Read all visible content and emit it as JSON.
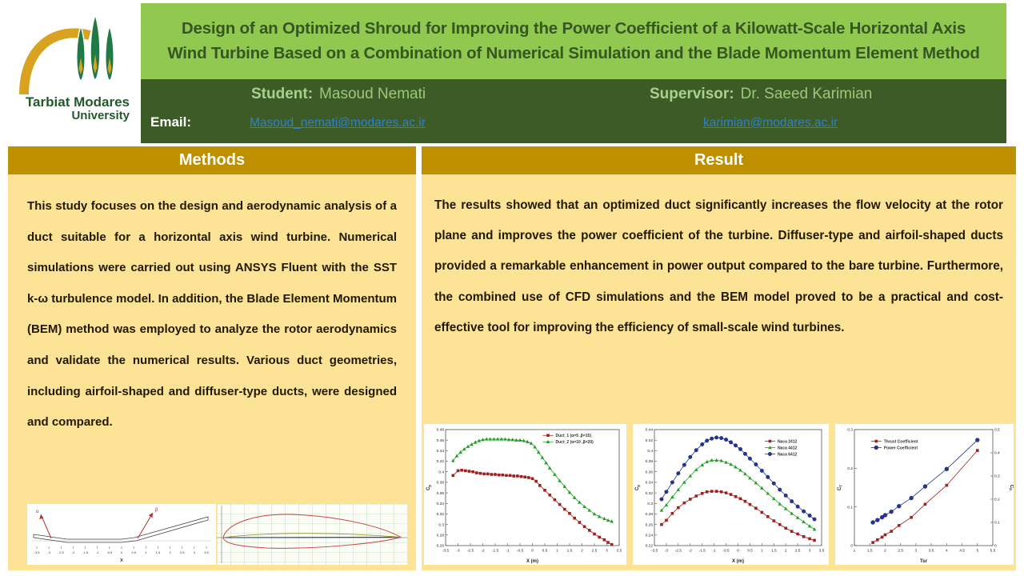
{
  "logo": {
    "name_line1": "Tarbiat Modares",
    "name_line2": "University"
  },
  "title": "Design of an Optimized Shroud for Improving the Power Coefficient of a Kilowatt-Scale Horizontal Axis Wind Turbine Based on a Combination of Numerical Simulation and the Blade Momentum Element Method",
  "people": {
    "student_label": "Student:",
    "student_name": "Masoud Nemati",
    "supervisor_label": "Supervisor:",
    "supervisor_name": "Dr. Saeed Karimian",
    "email_label": "Email:",
    "student_email": "Masoud_nemati@modares.ac.ir",
    "supervisor_email": "karimian@modares.ac.ir"
  },
  "sections": {
    "methods": {
      "title": "Methods",
      "body": "This study focuses on the design and aerodynamic analysis of a duct suitable for a horizontal axis wind turbine. Numerical simulations were carried out using ANSYS Fluent with the SST k-ω turbulence model. In addition, the Blade Element Momentum (BEM) method was employed to analyze the rotor aerodynamics and validate the numerical results. Various duct geometries, including airfoil-shaped and diffuser-type ducts, were designed and compared."
    },
    "result": {
      "title": "Result",
      "body": "The results showed that an optimized duct significantly increases the flow velocity at the rotor plane and improves the power coefficient of the turbine. Diffuser-type and airfoil-shaped ducts provided a remarkable enhancement in power output compared to the bare turbine. Furthermore, the combined use of CFD simulations and the BEM model proved to be a practical and cost-effective tool for improving the efficiency of small-scale wind turbines."
    }
  },
  "colors": {
    "title_band": "#90C850",
    "title_text": "#375623",
    "people_band": "#3D5B26",
    "section_header": "#BE9000",
    "panel_bg": "#FCE395",
    "link": "#2E80C8",
    "name_text": "#9CC87B",
    "series_red": "#A02020",
    "series_green": "#22A022",
    "series_blue": "#2233A0"
  },
  "chart_data": [
    {
      "type": "diagram",
      "id": "duct-profile",
      "description": "2D cross-section of the duct wall with inlet angle α and outlet angle β arrows",
      "xlabel": "X",
      "xticks": [
        -3.5,
        -3,
        -2.5,
        -2,
        -1.5,
        -1,
        -0.5,
        0,
        0.5,
        1,
        1.5,
        2,
        2.5,
        3,
        3.5
      ],
      "alpha_label": "α",
      "beta_label": "β"
    },
    {
      "type": "diagram",
      "id": "airfoil-profile",
      "description": "Cambered airfoil cross-section (red outline) with chord line (blue) and camber line (olive) on green grid"
    },
    {
      "type": "line",
      "id": "duct-cp-chart",
      "xlabel": "X (m)",
      "ylabel": {
        "main": "C",
        "sub": "p"
      },
      "xlim": [
        -3.5,
        3.5
      ],
      "ylim": [
        0.26,
        0.48
      ],
      "xticks": [
        -3.5,
        -3,
        -2.5,
        -2,
        -1.5,
        -1,
        -0.5,
        0,
        0.5,
        1,
        1.5,
        2,
        2.5,
        3,
        3.5
      ],
      "yticks": [
        0.26,
        0.28,
        0.3,
        0.32,
        0.34,
        0.36,
        0.38,
        0.4,
        0.42,
        0.44,
        0.46,
        0.48
      ],
      "legend_pos": [
        0.56,
        0.05
      ],
      "series": [
        {
          "name": "Duct_1 (α=5 ,β=15)",
          "color": "#A02020",
          "marker": "square",
          "points": [
            [
              -3.2,
              0.393
            ],
            [
              -3.0,
              0.402
            ],
            [
              -2.85,
              0.403
            ],
            [
              -2.7,
              0.402
            ],
            [
              -2.55,
              0.401
            ],
            [
              -2.4,
              0.4
            ],
            [
              -2.25,
              0.398
            ],
            [
              -2.1,
              0.397
            ],
            [
              -1.95,
              0.396
            ],
            [
              -1.8,
              0.396
            ],
            [
              -1.65,
              0.395
            ],
            [
              -1.5,
              0.395
            ],
            [
              -1.35,
              0.394
            ],
            [
              -1.2,
              0.394
            ],
            [
              -1.05,
              0.393
            ],
            [
              -0.9,
              0.393
            ],
            [
              -0.75,
              0.392
            ],
            [
              -0.6,
              0.392
            ],
            [
              -0.45,
              0.391
            ],
            [
              -0.3,
              0.39
            ],
            [
              -0.15,
              0.389
            ],
            [
              0.0,
              0.387
            ],
            [
              0.15,
              0.382
            ],
            [
              0.3,
              0.374
            ],
            [
              0.5,
              0.365
            ],
            [
              0.7,
              0.356
            ],
            [
              0.9,
              0.347
            ],
            [
              1.1,
              0.338
            ],
            [
              1.3,
              0.329
            ],
            [
              1.5,
              0.321
            ],
            [
              1.7,
              0.312
            ],
            [
              1.9,
              0.304
            ],
            [
              2.1,
              0.296
            ],
            [
              2.3,
              0.289
            ],
            [
              2.5,
              0.282
            ],
            [
              2.7,
              0.276
            ],
            [
              2.9,
              0.271
            ],
            [
              3.05,
              0.266
            ],
            [
              3.2,
              0.262
            ]
          ]
        },
        {
          "name": "Duct_2 (α=10 ,β=20)",
          "color": "#22A022",
          "marker": "triangle",
          "points": [
            [
              -3.2,
              0.421
            ],
            [
              -3.05,
              0.43
            ],
            [
              -2.9,
              0.437
            ],
            [
              -2.75,
              0.443
            ],
            [
              -2.6,
              0.448
            ],
            [
              -2.45,
              0.452
            ],
            [
              -2.3,
              0.456
            ],
            [
              -2.15,
              0.459
            ],
            [
              -2.0,
              0.461
            ],
            [
              -1.85,
              0.462
            ],
            [
              -1.7,
              0.462
            ],
            [
              -1.55,
              0.462
            ],
            [
              -1.4,
              0.462
            ],
            [
              -1.25,
              0.462
            ],
            [
              -1.1,
              0.462
            ],
            [
              -0.95,
              0.461
            ],
            [
              -0.8,
              0.461
            ],
            [
              -0.65,
              0.46
            ],
            [
              -0.5,
              0.46
            ],
            [
              -0.35,
              0.459
            ],
            [
              -0.2,
              0.457
            ],
            [
              -0.05,
              0.454
            ],
            [
              0.1,
              0.447
            ],
            [
              0.25,
              0.437
            ],
            [
              0.4,
              0.427
            ],
            [
              0.55,
              0.417
            ],
            [
              0.7,
              0.407
            ],
            [
              0.9,
              0.395
            ],
            [
              1.1,
              0.383
            ],
            [
              1.3,
              0.372
            ],
            [
              1.5,
              0.361
            ],
            [
              1.7,
              0.351
            ],
            [
              1.9,
              0.342
            ],
            [
              2.1,
              0.334
            ],
            [
              2.3,
              0.327
            ],
            [
              2.5,
              0.32
            ],
            [
              2.7,
              0.315
            ],
            [
              2.9,
              0.311
            ],
            [
              3.05,
              0.308
            ],
            [
              3.2,
              0.306
            ]
          ]
        }
      ]
    },
    {
      "type": "line",
      "id": "naca-cp-chart",
      "xlabel": "X (m)",
      "ylabel": {
        "main": "C",
        "sub": "p"
      },
      "xlim": [
        -3.5,
        3.5
      ],
      "ylim": [
        0.22,
        0.44
      ],
      "xticks": [
        -3.5,
        -3,
        -2.5,
        -2,
        -1.5,
        -1,
        -0.5,
        0,
        0.5,
        1,
        1.5,
        2,
        2.5,
        3,
        3.5
      ],
      "yticks": [
        0.22,
        0.24,
        0.26,
        0.28,
        0.3,
        0.32,
        0.34,
        0.36,
        0.38,
        0.4,
        0.42,
        0.44
      ],
      "legend_pos": [
        0.66,
        0.1
      ],
      "series": [
        {
          "name": "Naca 2412",
          "color": "#A02020",
          "marker": "square",
          "points": [
            [
              -3.2,
              0.26
            ],
            [
              -3.0,
              0.268
            ],
            [
              -2.75,
              0.281
            ],
            [
              -2.5,
              0.292
            ],
            [
              -2.25,
              0.301
            ],
            [
              -2.0,
              0.308
            ],
            [
              -1.75,
              0.314
            ],
            [
              -1.5,
              0.319
            ],
            [
              -1.3,
              0.322
            ],
            [
              -1.1,
              0.323
            ],
            [
              -0.9,
              0.323
            ],
            [
              -0.7,
              0.322
            ],
            [
              -0.5,
              0.32
            ],
            [
              -0.3,
              0.317
            ],
            [
              -0.1,
              0.313
            ],
            [
              0.1,
              0.309
            ],
            [
              0.3,
              0.304
            ],
            [
              0.5,
              0.298
            ],
            [
              0.75,
              0.291
            ],
            [
              1.0,
              0.283
            ],
            [
              1.25,
              0.275
            ],
            [
              1.5,
              0.267
            ],
            [
              1.75,
              0.26
            ],
            [
              2.0,
              0.253
            ],
            [
              2.25,
              0.247
            ],
            [
              2.5,
              0.242
            ],
            [
              2.75,
              0.237
            ],
            [
              3.0,
              0.233
            ],
            [
              3.2,
              0.23
            ]
          ]
        },
        {
          "name": "Naca 4412",
          "color": "#22A022",
          "marker": "triangle",
          "points": [
            [
              -3.2,
              0.287
            ],
            [
              -3.0,
              0.297
            ],
            [
              -2.75,
              0.312
            ],
            [
              -2.5,
              0.326
            ],
            [
              -2.25,
              0.34
            ],
            [
              -2.0,
              0.352
            ],
            [
              -1.75,
              0.364
            ],
            [
              -1.5,
              0.373
            ],
            [
              -1.3,
              0.379
            ],
            [
              -1.1,
              0.382
            ],
            [
              -0.9,
              0.382
            ],
            [
              -0.7,
              0.381
            ],
            [
              -0.5,
              0.378
            ],
            [
              -0.3,
              0.374
            ],
            [
              -0.1,
              0.369
            ],
            [
              0.1,
              0.363
            ],
            [
              0.3,
              0.356
            ],
            [
              0.5,
              0.348
            ],
            [
              0.75,
              0.339
            ],
            [
              1.0,
              0.329
            ],
            [
              1.25,
              0.319
            ],
            [
              1.5,
              0.309
            ],
            [
              1.75,
              0.299
            ],
            [
              2.0,
              0.29
            ],
            [
              2.25,
              0.281
            ],
            [
              2.5,
              0.273
            ],
            [
              2.75,
              0.265
            ],
            [
              3.0,
              0.257
            ],
            [
              3.2,
              0.251
            ]
          ]
        },
        {
          "name": "Naca 6412",
          "color": "#2233A0",
          "marker": "circle",
          "msize": 2.3,
          "points": [
            [
              -3.2,
              0.308
            ],
            [
              -3.0,
              0.322
            ],
            [
              -2.75,
              0.34
            ],
            [
              -2.5,
              0.357
            ],
            [
              -2.25,
              0.373
            ],
            [
              -2.0,
              0.388
            ],
            [
              -1.75,
              0.401
            ],
            [
              -1.5,
              0.412
            ],
            [
              -1.3,
              0.419
            ],
            [
              -1.1,
              0.423
            ],
            [
              -0.9,
              0.425
            ],
            [
              -0.7,
              0.424
            ],
            [
              -0.5,
              0.421
            ],
            [
              -0.3,
              0.416
            ],
            [
              -0.1,
              0.41
            ],
            [
              0.1,
              0.403
            ],
            [
              0.3,
              0.394
            ],
            [
              0.5,
              0.385
            ],
            [
              0.75,
              0.374
            ],
            [
              1.0,
              0.362
            ],
            [
              1.25,
              0.35
            ],
            [
              1.5,
              0.338
            ],
            [
              1.75,
              0.326
            ],
            [
              2.0,
              0.315
            ],
            [
              2.25,
              0.304
            ],
            [
              2.5,
              0.294
            ],
            [
              2.75,
              0.285
            ],
            [
              3.0,
              0.277
            ],
            [
              3.2,
              0.27
            ]
          ]
        }
      ]
    },
    {
      "type": "line",
      "id": "coefficient-tsr-chart",
      "xlabel": "Tsr",
      "ylabel": {
        "main": "C",
        "sub": "T"
      },
      "y2label": {
        "main": "C",
        "sub": "P"
      },
      "xlim": [
        1,
        5.5
      ],
      "ylim": [
        0,
        0.3
      ],
      "xticks": [
        1,
        1.5,
        2,
        2.5,
        3,
        3.5,
        4,
        4.5,
        5,
        5.5
      ],
      "yticks": [
        0,
        0.1,
        0.2,
        0.3
      ],
      "y2": {
        "lim": [
          0,
          0.5
        ],
        "ticks": [
          0,
          0.1,
          0.2,
          0.3,
          0.4,
          0.5
        ]
      },
      "legend_pos": [
        0.12,
        0.1
      ],
      "series": [
        {
          "name": "Thrust Coefficient",
          "color": "#A02020",
          "marker": "square",
          "points": [
            [
              1.6,
              0.008
            ],
            [
              1.75,
              0.015
            ],
            [
              1.9,
              0.022
            ],
            [
              2.0,
              0.028
            ],
            [
              2.2,
              0.037
            ],
            [
              2.45,
              0.052
            ],
            [
              2.85,
              0.073
            ],
            [
              3.3,
              0.107
            ],
            [
              4.0,
              0.156
            ],
            [
              5.0,
              0.246
            ]
          ]
        },
        {
          "name": "Power Coefficient",
          "color": "#2233A0",
          "marker": "circle",
          "msize": 2.5,
          "axis": "y2",
          "points": [
            [
              1.6,
              0.1
            ],
            [
              1.75,
              0.11
            ],
            [
              1.9,
              0.122
            ],
            [
              2.0,
              0.131
            ],
            [
              2.2,
              0.146
            ],
            [
              2.45,
              0.17
            ],
            [
              2.85,
              0.205
            ],
            [
              3.3,
              0.255
            ],
            [
              4.0,
              0.33
            ],
            [
              5.0,
              0.455
            ]
          ]
        }
      ]
    }
  ]
}
